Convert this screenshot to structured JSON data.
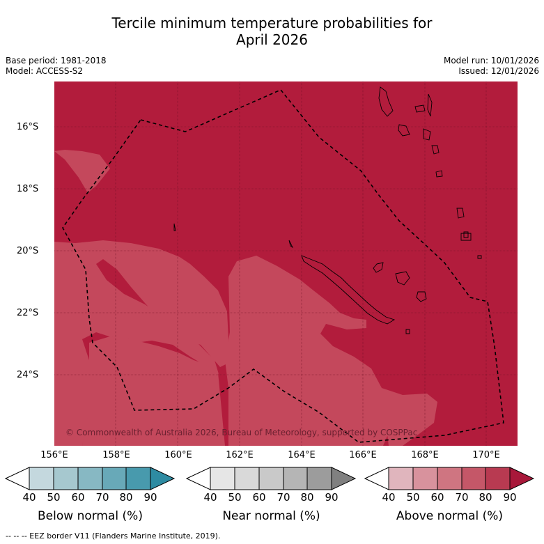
{
  "title": {
    "line1": "Tercile minimum temperature probabilities for",
    "line2": "April 2026"
  },
  "meta": {
    "base_period": "Base period: 1981-2018",
    "model": "Model: ACCESS-S2",
    "model_run": "Model run: 10/01/2026",
    "issued": "Issued: 12/01/2026"
  },
  "map": {
    "lat_labels": [
      "16°S",
      "18°S",
      "20°S",
      "22°S",
      "24°S"
    ],
    "lon_labels": [
      "156°E",
      "158°E",
      "160°E",
      "162°E",
      "164°E",
      "166°E",
      "168°E",
      "170°E"
    ],
    "copyright": "© Commonwealth of Australia 2026, Bureau of Meteorology, supported by COSPPac",
    "colors": {
      "above_80_90": "#b21c3c",
      "above_70_80": "#c4485c",
      "border": "#000000"
    }
  },
  "colorbars": [
    {
      "label": "Below normal (%)",
      "ticks": [
        "40",
        "50",
        "60",
        "70",
        "80",
        "90"
      ],
      "colors": [
        "#c4d8de",
        "#a6c8cf",
        "#87b8c3",
        "#68a9b8",
        "#489aad",
        "#2e8ba2"
      ]
    },
    {
      "label": "Near normal (%)",
      "ticks": [
        "40",
        "50",
        "60",
        "70",
        "80",
        "90"
      ],
      "colors": [
        "#e6e6e6",
        "#d9d9d9",
        "#c9c9c9",
        "#b5b5b5",
        "#9c9c9c",
        "#808080"
      ]
    },
    {
      "label": "Above normal (%)",
      "ticks": [
        "40",
        "50",
        "60",
        "70",
        "80",
        "90"
      ],
      "colors": [
        "#e0b5bd",
        "#d8929d",
        "#cf7581",
        "#c55768",
        "#b83a51",
        "#a8183a"
      ]
    }
  ],
  "footer": "--  --  -- EEZ border V11 (Flanders Marine Institute, 2019)."
}
